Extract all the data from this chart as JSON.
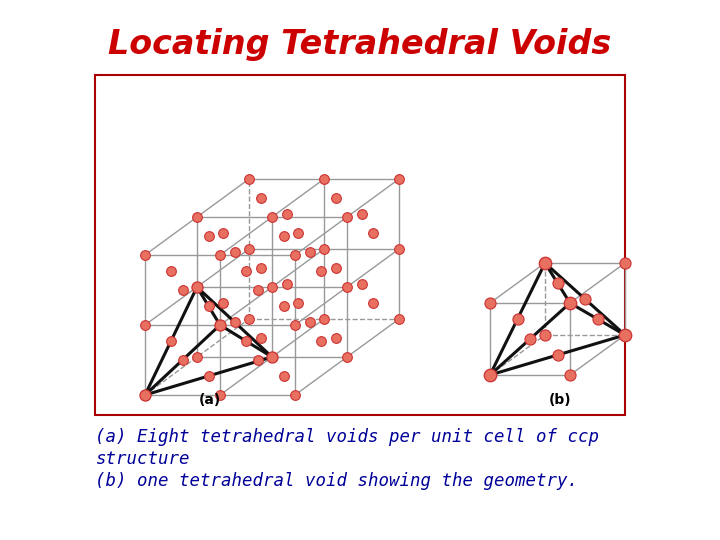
{
  "title": "Locating Tetrahedral Voids",
  "title_color": "#cc0000",
  "title_fontsize": 24,
  "caption_color": "#000099",
  "caption_fontsize": 12.5,
  "caption_line1": "(a) Eight tetrahedral voids per unit cell of ccp",
  "caption_line2": "structure",
  "caption_line3": "(b) one tetrahedral void showing the geometry.",
  "box_border_color": "#aa0000",
  "atom_color": "#e87060",
  "atom_edge_color": "#cc3333",
  "grid_color": "#999999",
  "tet_edge_color": "#111111",
  "label_a": "(a)",
  "label_b": "(b)",
  "bg_color": "#ffffff",
  "label_fontsize": 10
}
